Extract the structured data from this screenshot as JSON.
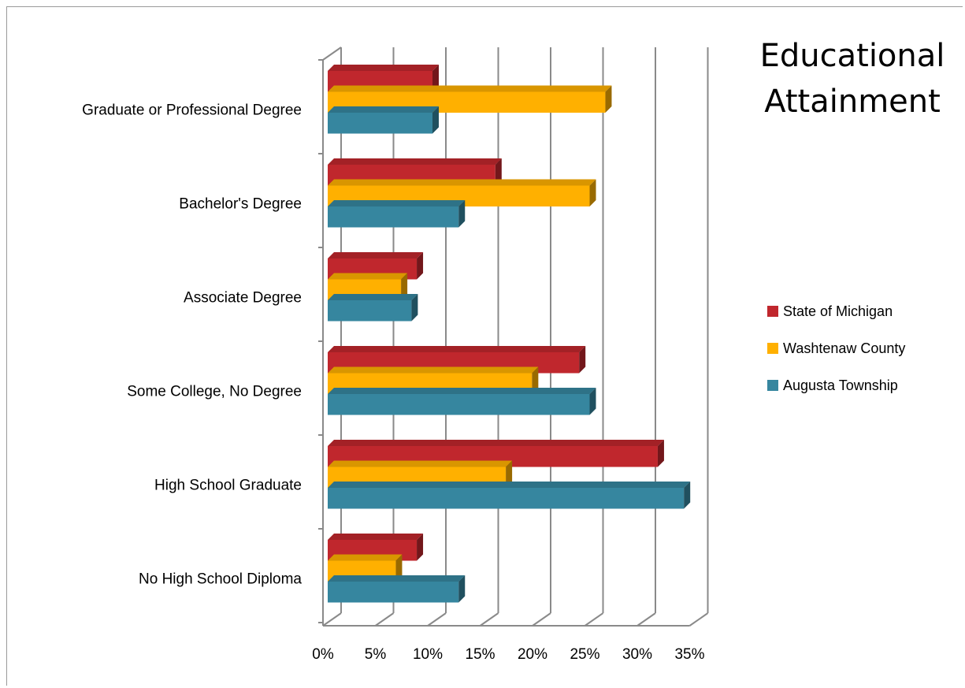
{
  "chart_data": {
    "type": "bar",
    "orientation": "horizontal",
    "style": "3d-clustered",
    "title_lines": [
      "Educational",
      "Attainment"
    ],
    "categories": [
      "Graduate or Professional Degree",
      "Bachelor's Degree",
      "Associate Degree",
      "Some College, No Degree",
      "High School Graduate",
      "No High School Diploma"
    ],
    "series": [
      {
        "name": "State of Michigan",
        "color": "#C0272D",
        "values": [
          10,
          16,
          8.5,
          24,
          31.5,
          8.5
        ]
      },
      {
        "name": "Washtenaw County",
        "color": "#FFB000",
        "values": [
          26.5,
          25,
          7,
          19.5,
          17,
          6.5
        ]
      },
      {
        "name": "Augusta Township",
        "color": "#36869F",
        "values": [
          10,
          12.5,
          8,
          25,
          34,
          12.5
        ]
      }
    ],
    "x_ticks": [
      "0%",
      "5%",
      "10%",
      "15%",
      "20%",
      "25%",
      "30%",
      "35%"
    ],
    "xlim": [
      0,
      35
    ],
    "grid": true,
    "legend_position": "right"
  }
}
